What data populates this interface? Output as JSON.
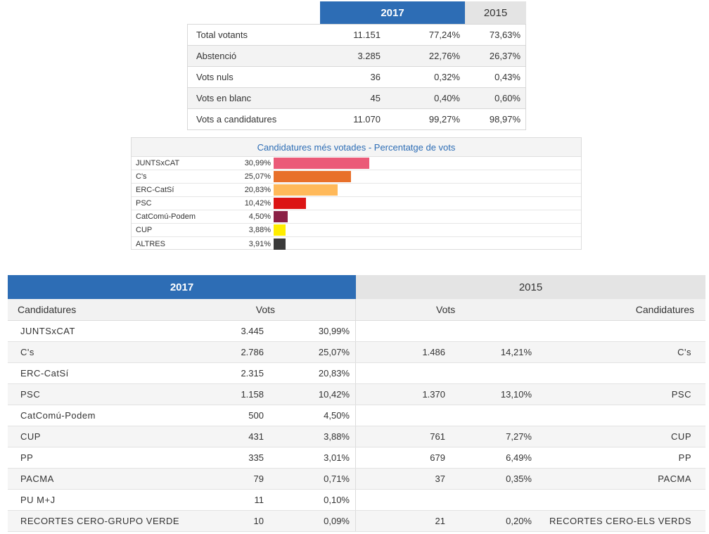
{
  "summary": {
    "header_2017": "2017",
    "header_2015": "2015",
    "rows": [
      {
        "label": "Total votants",
        "v2017": "11.151",
        "p2017": "77,24%",
        "p2015": "73,63%"
      },
      {
        "label": "Abstenció",
        "v2017": "3.285",
        "p2017": "22,76%",
        "p2015": "26,37%"
      },
      {
        "label": "Vots nuls",
        "v2017": "36",
        "p2017": "0,32%",
        "p2015": "0,43%"
      },
      {
        "label": "Vots en blanc",
        "v2017": "45",
        "p2017": "0,40%",
        "p2015": "0,60%"
      },
      {
        "label": "Vots a candidatures",
        "v2017": "11.070",
        "p2017": "99,27%",
        "p2015": "98,97%"
      }
    ]
  },
  "chart_data": {
    "type": "bar",
    "title": "Candidatures més votades - Percentatge de vots",
    "categories": [
      "JUNTSxCAT",
      "C's",
      "ERC-CatSí",
      "PSC",
      "CatComú-Podem",
      "CUP",
      "ALTRES"
    ],
    "values": [
      30.99,
      25.07,
      20.83,
      10.42,
      4.5,
      3.88,
      3.91
    ],
    "labels": [
      "30,99%",
      "25,07%",
      "20,83%",
      "10,42%",
      "4,50%",
      "3,88%",
      "3,91%"
    ],
    "colors": [
      "#eb5a78",
      "#e8702a",
      "#ffb95a",
      "#dc1414",
      "#8b2146",
      "#ffed00",
      "#3a3a3a"
    ],
    "xlim": [
      0,
      100
    ],
    "grid": false
  },
  "results": {
    "header_2017": "2017",
    "header_2015": "2015",
    "sub_left_cand": "Candidatures",
    "sub_left_vots": "Vots",
    "sub_right_vots": "Vots",
    "sub_right_cand": "Candidatures",
    "rows": [
      {
        "name": "JUNTSxCAT",
        "vots": "3.445",
        "pct": "30,99%",
        "vots15": "",
        "pct15": "",
        "name15": ""
      },
      {
        "name": "C's",
        "vots": "2.786",
        "pct": "25,07%",
        "vots15": "1.486",
        "pct15": "14,21%",
        "name15": "C's"
      },
      {
        "name": "ERC-CatSí",
        "vots": "2.315",
        "pct": "20,83%",
        "vots15": "",
        "pct15": "",
        "name15": ""
      },
      {
        "name": "PSC",
        "vots": "1.158",
        "pct": "10,42%",
        "vots15": "1.370",
        "pct15": "13,10%",
        "name15": "PSC"
      },
      {
        "name": "CatComú-Podem",
        "vots": "500",
        "pct": "4,50%",
        "vots15": "",
        "pct15": "",
        "name15": ""
      },
      {
        "name": "CUP",
        "vots": "431",
        "pct": "3,88%",
        "vots15": "761",
        "pct15": "7,27%",
        "name15": "CUP"
      },
      {
        "name": "PP",
        "vots": "335",
        "pct": "3,01%",
        "vots15": "679",
        "pct15": "6,49%",
        "name15": "PP"
      },
      {
        "name": "PACMA",
        "vots": "79",
        "pct": "0,71%",
        "vots15": "37",
        "pct15": "0,35%",
        "name15": "PACMA"
      },
      {
        "name": "PU M+J",
        "vots": "11",
        "pct": "0,10%",
        "vots15": "",
        "pct15": "",
        "name15": ""
      },
      {
        "name": "RECORTES CERO-GRUPO VERDE",
        "vots": "10",
        "pct": "0,09%",
        "vots15": "21",
        "pct15": "0,20%",
        "name15": "RECORTES CERO-ELS VERDS"
      }
    ]
  }
}
